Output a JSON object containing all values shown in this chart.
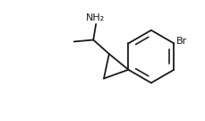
{
  "background_color": "#ffffff",
  "line_color": "#1a1a1a",
  "line_width": 1.3,
  "font_size_nh2": 8.0,
  "font_size_br": 8.0,
  "nh2_label": "NH₂",
  "br_label": "Br",
  "figsize": [
    2.29,
    1.35
  ],
  "dpi": 100
}
